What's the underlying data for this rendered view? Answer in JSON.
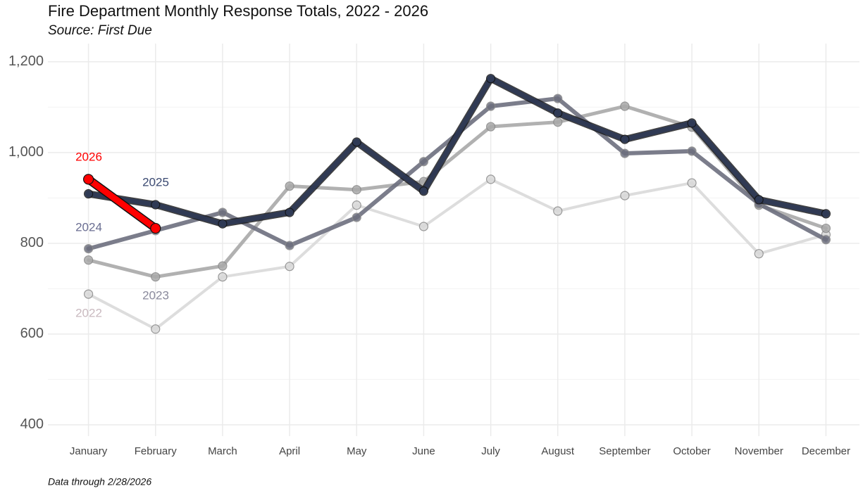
{
  "chart_data": {
    "type": "line",
    "title": "Fire Department Monthly Response Totals, 2022 - 2026",
    "subtitle": "Source: First Due",
    "footnote": "Data through 2/28/2026",
    "categories": [
      "January",
      "February",
      "March",
      "April",
      "May",
      "June",
      "July",
      "August",
      "September",
      "October",
      "November",
      "December"
    ],
    "series": [
      {
        "name": "2022",
        "color": "#d9d9d9",
        "label_color": "#c9b9bf",
        "values": [
          688,
          611,
          726,
          749,
          884,
          837,
          941,
          871,
          905,
          933,
          777,
          819
        ]
      },
      {
        "name": "2023",
        "color": "#a9a9a9",
        "label_color": "#8a8a9c",
        "values": [
          763,
          726,
          750,
          926,
          918,
          936,
          1057,
          1067,
          1102,
          1056,
          884,
          833
        ]
      },
      {
        "name": "2024",
        "color": "#6d6f7e",
        "label_color": "#6a6e92",
        "values": [
          788,
          828,
          868,
          795,
          857,
          980,
          1102,
          1119,
          998,
          1003,
          887,
          808
        ]
      },
      {
        "name": "2025",
        "color": "#2f3a56",
        "label_color": "#3b4a72",
        "values": [
          909,
          885,
          843,
          868,
          1023,
          915,
          1163,
          1087,
          1029,
          1065,
          896,
          865
        ]
      },
      {
        "name": "2026",
        "color": "#ff0000",
        "label_color": "#ff0000",
        "values": [
          941,
          833,
          null,
          null,
          null,
          null,
          null,
          null,
          null,
          null,
          null,
          null
        ]
      }
    ],
    "ylim": [
      375,
      1240
    ],
    "yticks": [
      {
        "value": 400,
        "label": "400"
      },
      {
        "value": 600,
        "label": "600"
      },
      {
        "value": 800,
        "label": "800"
      },
      {
        "value": 1000,
        "label": "1,000"
      },
      {
        "value": 1200,
        "label": "1,200"
      }
    ],
    "grid": true
  }
}
